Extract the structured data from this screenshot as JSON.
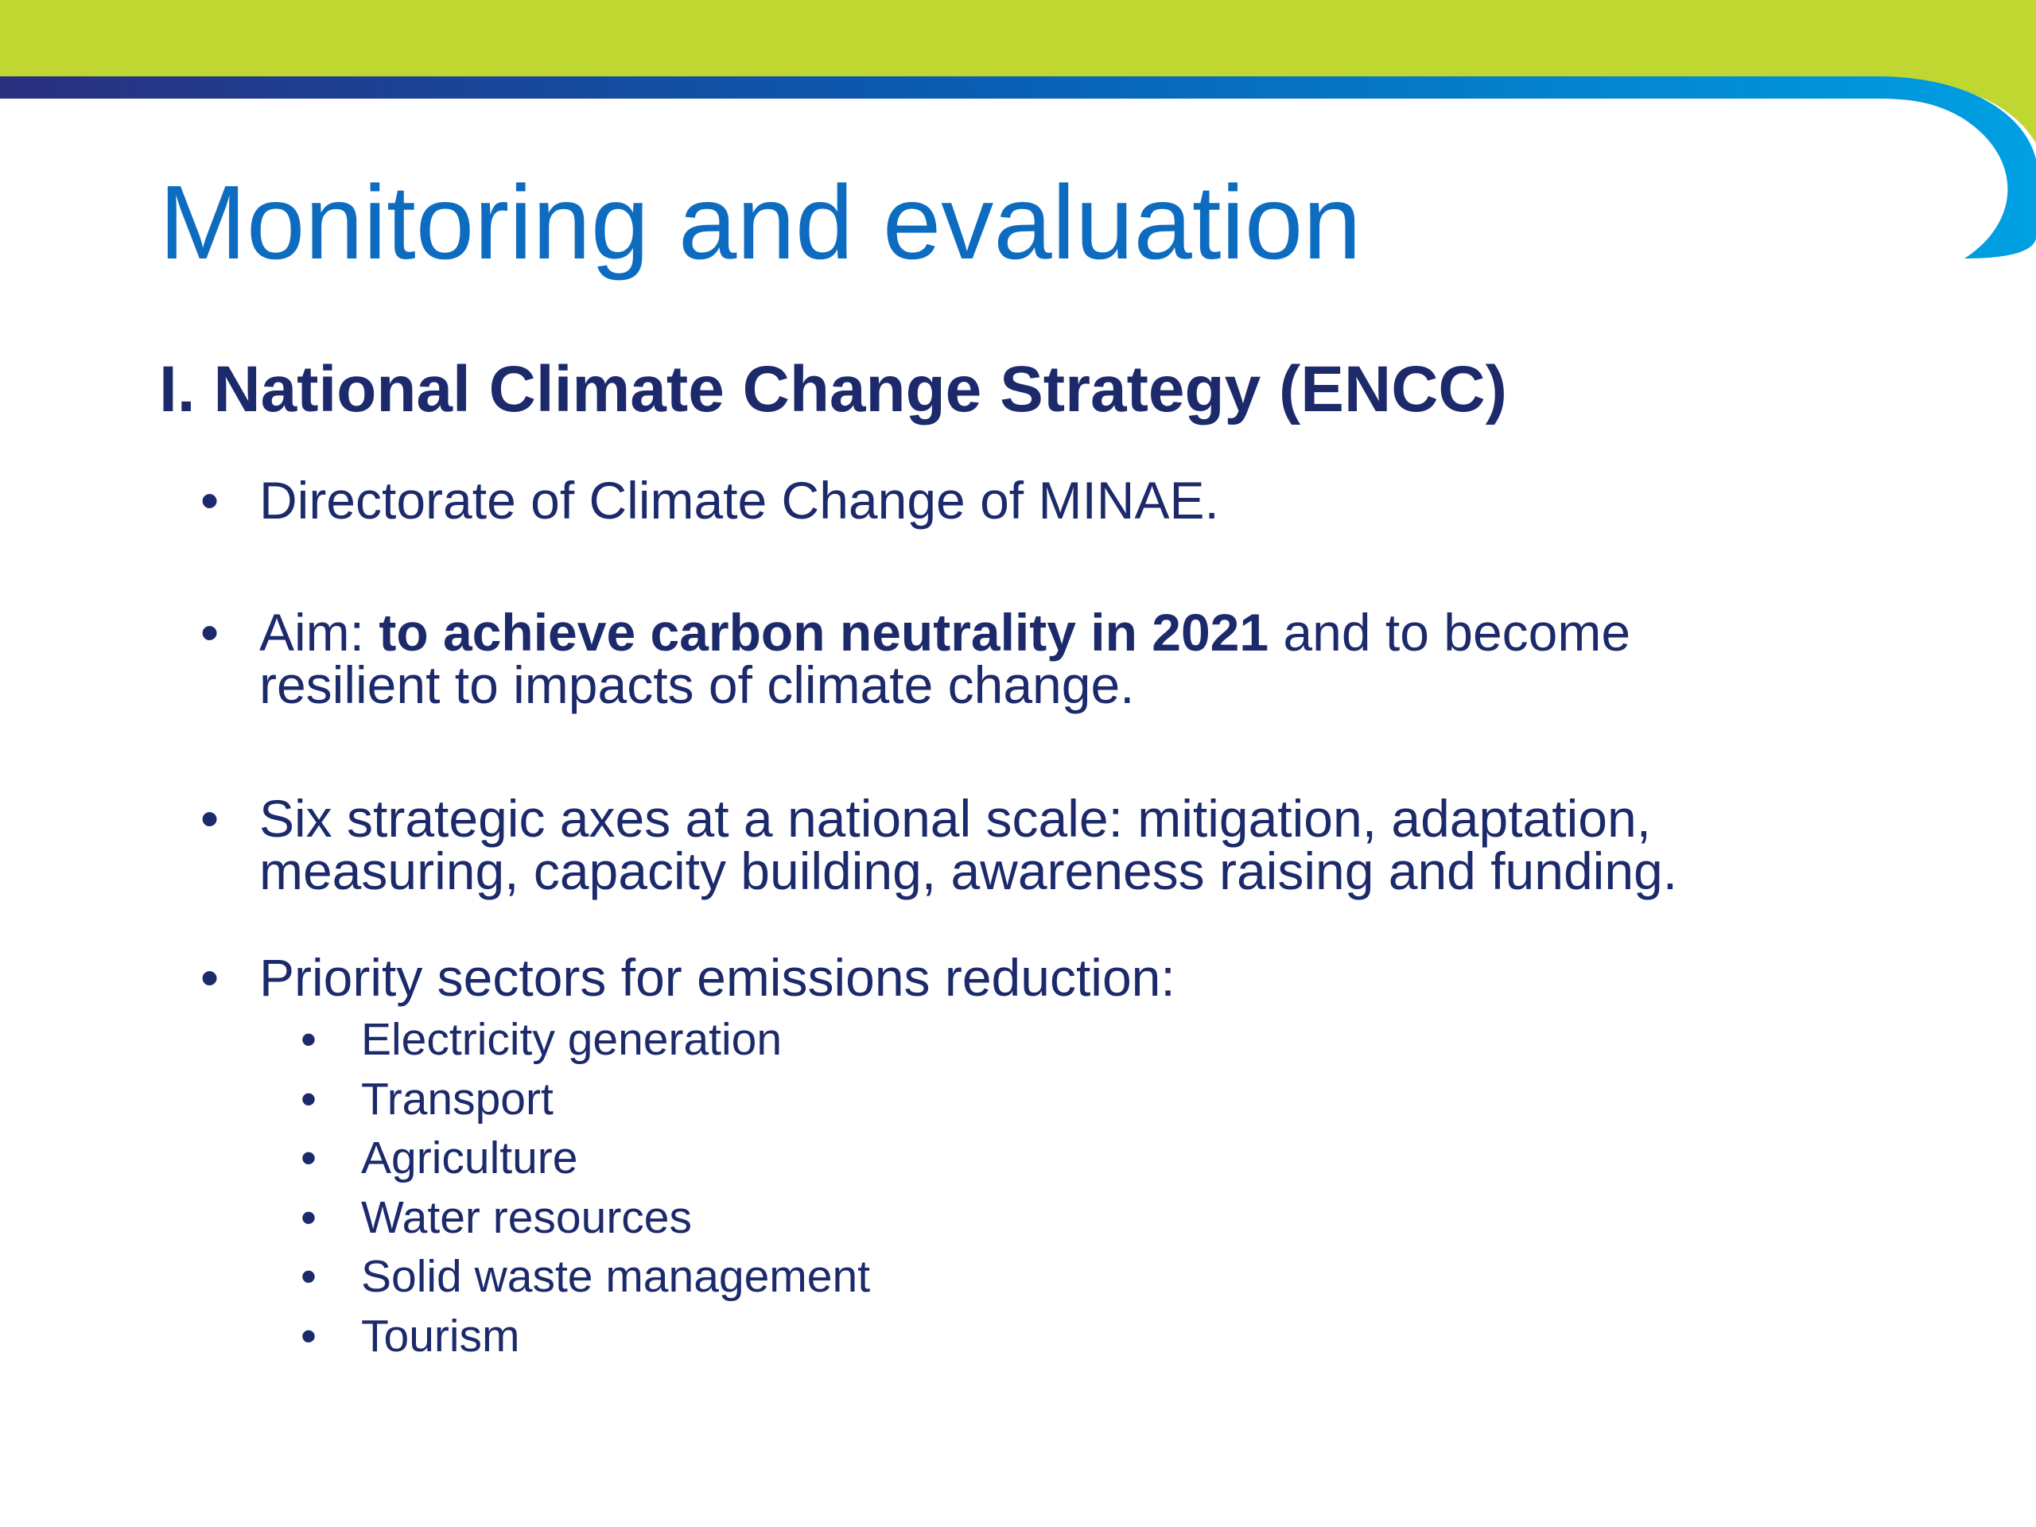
{
  "slide": {
    "title": "Monitoring and evaluation",
    "subtitle": "I. National Climate Change Strategy (ENCC)",
    "bullets": [
      {
        "text": "Directorate of Climate Change of MINAE."
      },
      {
        "prefix": "Aim: ",
        "bold": "to achieve carbon neutrality in 2021",
        "suffix": " and to become",
        "line2": "resilient to impacts of climate change."
      },
      {
        "line1": "Six strategic axes at a national scale: mitigation, adaptation,",
        "line2": "measuring, capacity building, awareness raising and funding."
      },
      {
        "text": "Priority sectors for emissions reduction:",
        "subitems": [
          "Electricity generation",
          "Transport",
          "Agriculture",
          "Water resources",
          "Solid waste management",
          "Tourism"
        ]
      }
    ],
    "bullet_symbol": "•"
  },
  "colors": {
    "green_band": "#bfd730",
    "navy_stripe_start": "#2a2f7e",
    "blue_stripe_end": "#00a0e3",
    "title_blue": "#0d6cc0",
    "text_navy": "#1c2a6b"
  }
}
